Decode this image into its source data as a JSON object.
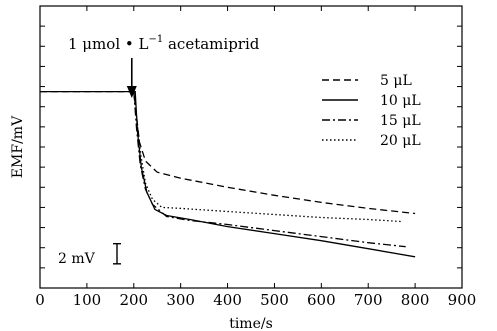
{
  "chart_data": {
    "type": "line",
    "title": "",
    "xlabel": "time/s",
    "ylabel": "EMF/mV",
    "xlim": [
      0,
      900
    ],
    "xticks": [
      0,
      100,
      200,
      300,
      400,
      500,
      600,
      700,
      800,
      900
    ],
    "y_tick_labels_shown": false,
    "grid": false,
    "legend_position": "top-right",
    "annotation": {
      "text_main": "1 μmol • L",
      "text_sup": "−1",
      "text_tail": " acetamiprid",
      "arrow_at_x": 200
    },
    "scale_bar": {
      "label": "2 mV",
      "value_mV": 2
    },
    "series": [
      {
        "name": "5 μL",
        "dash": "dashed",
        "points": [
          [
            0,
            31.5
          ],
          [
            200,
            31.5
          ],
          [
            205,
            29.5
          ],
          [
            212,
            26.5
          ],
          [
            225,
            24.6
          ],
          [
            250,
            23.5
          ],
          [
            300,
            22.9
          ],
          [
            400,
            22.0
          ],
          [
            500,
            21.2
          ],
          [
            600,
            20.5
          ],
          [
            700,
            19.9
          ],
          [
            800,
            19.4
          ]
        ]
      },
      {
        "name": "10 μL",
        "dash": "solid",
        "points": [
          [
            0,
            31.5
          ],
          [
            203,
            31.5
          ],
          [
            208,
            27.5
          ],
          [
            216,
            24.0
          ],
          [
            228,
            21.5
          ],
          [
            245,
            19.8
          ],
          [
            270,
            19.2
          ],
          [
            320,
            18.8
          ],
          [
            400,
            18.1
          ],
          [
            500,
            17.4
          ],
          [
            600,
            16.7
          ],
          [
            700,
            15.9
          ],
          [
            800,
            15.1
          ]
        ]
      },
      {
        "name": "15 μL",
        "dash": "dashdot",
        "points": [
          [
            200,
            31.5
          ],
          [
            206,
            27.8
          ],
          [
            214,
            24.2
          ],
          [
            225,
            21.8
          ],
          [
            240,
            20.3
          ],
          [
            270,
            19.1
          ],
          [
            320,
            18.7
          ],
          [
            400,
            18.3
          ],
          [
            500,
            17.7
          ],
          [
            600,
            17.1
          ],
          [
            700,
            16.5
          ],
          [
            780,
            16.1
          ]
        ]
      },
      {
        "name": "20 μL",
        "dash": "dotted",
        "points": [
          [
            200,
            31.5
          ],
          [
            207,
            28.5
          ],
          [
            215,
            25.2
          ],
          [
            225,
            22.4
          ],
          [
            240,
            20.8
          ],
          [
            260,
            20.0
          ],
          [
            300,
            19.9
          ],
          [
            400,
            19.6
          ],
          [
            500,
            19.3
          ],
          [
            600,
            19.0
          ],
          [
            700,
            18.8
          ],
          [
            770,
            18.6
          ]
        ]
      }
    ]
  }
}
